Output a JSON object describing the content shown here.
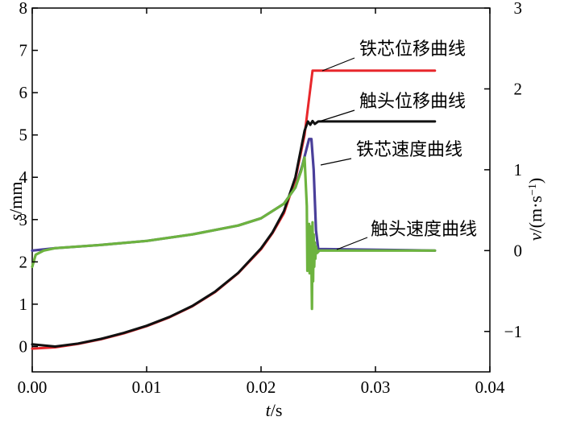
{
  "chart_data": {
    "type": "line",
    "xlabel_var": "t",
    "xlabel_unit": "/s",
    "ylabel_var": "s",
    "ylabel_unit": "/mm",
    "y2label_var": "v",
    "y2label_unit": "/(m·s",
    "y2label_sup": "−1",
    "y2label_close": ")",
    "xlim": [
      0,
      0.04
    ],
    "ylim": [
      -0.6,
      8
    ],
    "y2lim": [
      -1.5,
      3
    ],
    "xticks": [
      "0.00",
      "0.01",
      "0.02",
      "0.03",
      "0.04"
    ],
    "yticks": [
      "0",
      "1",
      "2",
      "3",
      "4",
      "5",
      "6",
      "7",
      "8"
    ],
    "y2ticks": [
      "−1",
      "0",
      "1",
      "2",
      "3"
    ],
    "grid": false,
    "series": [
      {
        "name": "铁芯位移曲线",
        "axis": "left",
        "color": "#e8272b",
        "points": [
          [
            0,
            -0.05
          ],
          [
            0.002,
            -0.02
          ],
          [
            0.004,
            0.06
          ],
          [
            0.006,
            0.17
          ],
          [
            0.008,
            0.31
          ],
          [
            0.01,
            0.48
          ],
          [
            0.012,
            0.69
          ],
          [
            0.014,
            0.95
          ],
          [
            0.016,
            1.29
          ],
          [
            0.018,
            1.73
          ],
          [
            0.02,
            2.3
          ],
          [
            0.021,
            2.68
          ],
          [
            0.022,
            3.15
          ],
          [
            0.023,
            3.95
          ],
          [
            0.0238,
            5.0
          ],
          [
            0.0245,
            6.52
          ],
          [
            0.0352,
            6.52
          ]
        ]
      },
      {
        "name": "触头位移曲线",
        "axis": "left",
        "color": "#111111",
        "points": [
          [
            0,
            0.05
          ],
          [
            0.002,
            0.0
          ],
          [
            0.004,
            0.07
          ],
          [
            0.006,
            0.18
          ],
          [
            0.008,
            0.32
          ],
          [
            0.01,
            0.49
          ],
          [
            0.012,
            0.7
          ],
          [
            0.014,
            0.96
          ],
          [
            0.016,
            1.3
          ],
          [
            0.018,
            1.74
          ],
          [
            0.02,
            2.32
          ],
          [
            0.021,
            2.7
          ],
          [
            0.022,
            3.2
          ],
          [
            0.023,
            4.0
          ],
          [
            0.0238,
            5.1
          ],
          [
            0.0241,
            5.32
          ],
          [
            0.0243,
            5.24
          ],
          [
            0.0245,
            5.33
          ],
          [
            0.0247,
            5.26
          ],
          [
            0.025,
            5.32
          ],
          [
            0.0352,
            5.32
          ]
        ]
      },
      {
        "name": "铁芯速度曲线",
        "axis": "right",
        "color": "#4a3f9a",
        "points": [
          [
            0,
            0.0
          ],
          [
            0.002,
            0.03
          ],
          [
            0.006,
            0.07
          ],
          [
            0.01,
            0.12
          ],
          [
            0.014,
            0.2
          ],
          [
            0.018,
            0.31
          ],
          [
            0.02,
            0.4
          ],
          [
            0.022,
            0.58
          ],
          [
            0.023,
            0.78
          ],
          [
            0.0236,
            1.05
          ],
          [
            0.0242,
            1.38
          ],
          [
            0.0244,
            1.38
          ],
          [
            0.0246,
            1.0
          ],
          [
            0.0248,
            0.25
          ],
          [
            0.025,
            0.02
          ],
          [
            0.0352,
            0.0
          ]
        ]
      },
      {
        "name": "触头速度曲线",
        "axis": "right",
        "color": "#6db33f",
        "points": [
          [
            0,
            -0.2
          ],
          [
            0.0003,
            -0.05
          ],
          [
            0.001,
            0.0
          ],
          [
            0.002,
            0.03
          ],
          [
            0.006,
            0.07
          ],
          [
            0.01,
            0.12
          ],
          [
            0.014,
            0.2
          ],
          [
            0.018,
            0.31
          ],
          [
            0.02,
            0.4
          ],
          [
            0.022,
            0.58
          ],
          [
            0.023,
            0.78
          ],
          [
            0.0235,
            0.98
          ],
          [
            0.0238,
            1.15
          ],
          [
            0.024,
            0.55
          ],
          [
            0.02405,
            -0.25
          ],
          [
            0.0241,
            -0.08
          ],
          [
            0.02415,
            -0.08
          ],
          [
            0.0242,
            0.33
          ],
          [
            0.02425,
            -0.28
          ],
          [
            0.0243,
            0.3
          ],
          [
            0.02435,
            -0.08
          ],
          [
            0.0244,
            -0.14
          ],
          [
            0.02445,
            -0.72
          ],
          [
            0.0245,
            0.35
          ],
          [
            0.02455,
            -0.38
          ],
          [
            0.0246,
            0.2
          ],
          [
            0.02465,
            -0.2
          ],
          [
            0.0247,
            0.1
          ],
          [
            0.02475,
            -0.1
          ],
          [
            0.0248,
            0.05
          ],
          [
            0.0249,
            -0.03
          ],
          [
            0.0251,
            0.0
          ],
          [
            0.0352,
            0.0
          ]
        ]
      }
    ],
    "annotations": [
      {
        "text": "铁芯位移曲线",
        "series": 0
      },
      {
        "text": "触头位移曲线",
        "series": 1
      },
      {
        "text": "铁芯速度曲线",
        "series": 2
      },
      {
        "text": "触头速度曲线",
        "series": 3
      }
    ]
  }
}
